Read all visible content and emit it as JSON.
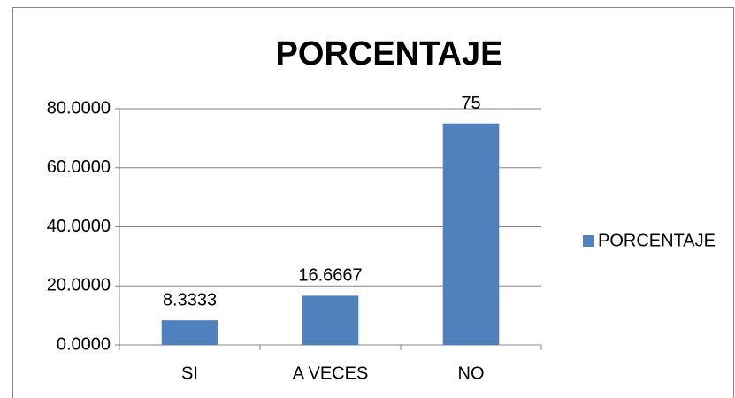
{
  "chart_data": {
    "type": "bar",
    "title": "PORCENTAJE",
    "categories": [
      "SI",
      "A VECES",
      "NO"
    ],
    "series": [
      {
        "name": "PORCENTAJE",
        "color": "#4f81bd",
        "values": [
          8.3333,
          16.6667,
          75
        ]
      }
    ],
    "ylim": [
      0,
      80
    ],
    "yticks": [
      {
        "value": 0,
        "label": "0.0000"
      },
      {
        "value": 20,
        "label": "20.0000"
      },
      {
        "value": 40,
        "label": "40.0000"
      },
      {
        "value": 60,
        "label": "60.0000"
      },
      {
        "value": 80,
        "label": "80.0000"
      }
    ],
    "grid": true,
    "legend": "right"
  }
}
